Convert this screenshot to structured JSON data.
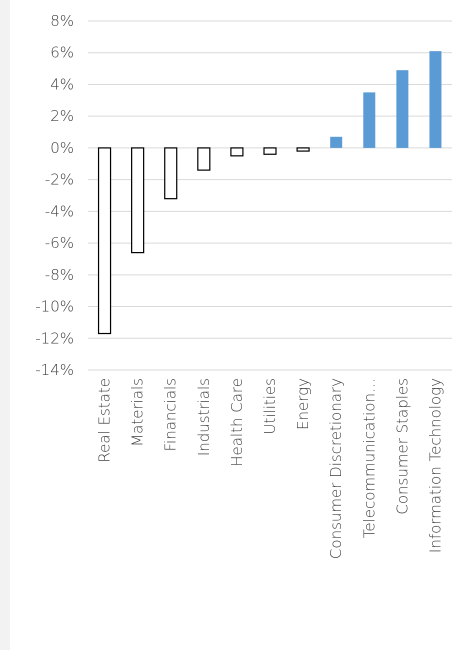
{
  "chart_data": {
    "type": "bar",
    "title": "",
    "xlabel": "",
    "ylabel": "",
    "categories": [
      "Real Estate",
      "Materials",
      "Financials",
      "Industrials",
      "Health Care",
      "Utilities",
      "Energy",
      "Consumer Discretionary",
      "Telecommunication…",
      "Consumer Staples",
      "Information Technology"
    ],
    "values": [
      -11.7,
      -6.6,
      -3.2,
      -1.4,
      -0.5,
      -0.4,
      -0.2,
      0.7,
      3.5,
      4.9,
      6.1
    ],
    "ylim": [
      -14,
      8
    ],
    "yticks": [
      8,
      6,
      4,
      2,
      0,
      -2,
      -4,
      -6,
      -8,
      -10,
      -12,
      -14
    ],
    "ytick_labels": [
      "8%",
      "6%",
      "4%",
      "2%",
      "0%",
      "-2%",
      "-4%",
      "-6%",
      "-8%",
      "-10%",
      "-12%",
      "-14%"
    ],
    "grid": true,
    "legend": "none",
    "colors": {
      "negative_fill": "#ffffff",
      "negative_stroke": "#000000",
      "positive_fill": "#5b9bd5",
      "grid": "#d9d9d9",
      "text": "#404040"
    }
  }
}
